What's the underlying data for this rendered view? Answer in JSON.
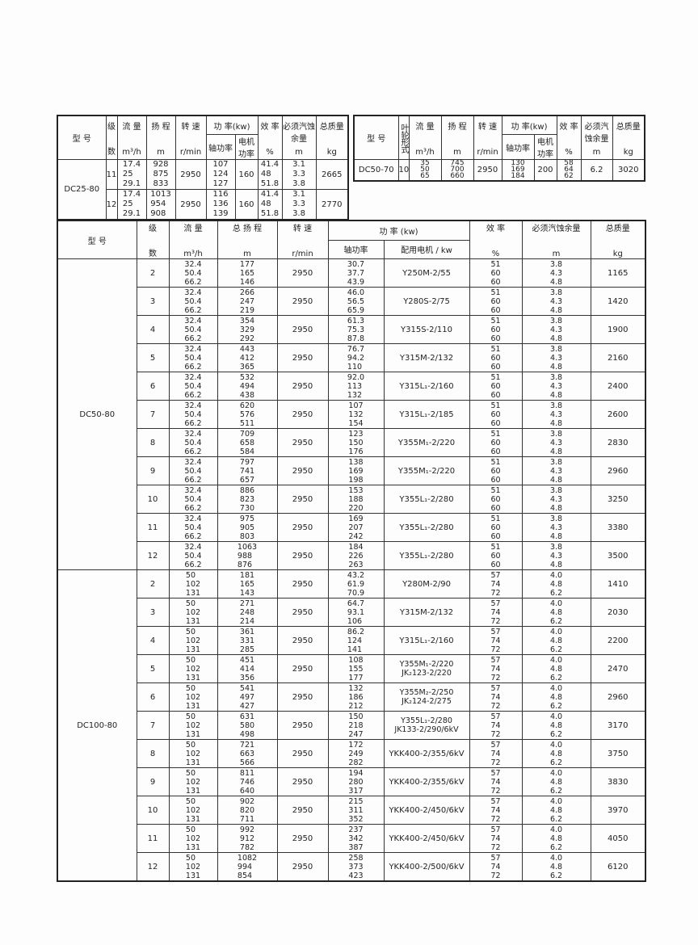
{
  "t1": {
    "header": [
      {
        "label": "型  号"
      },
      {
        "label": "级",
        "unit": "数"
      },
      {
        "label": "流 量",
        "unit": "m³/h"
      },
      {
        "label": "扬 程",
        "unit": "m"
      },
      {
        "label": "转 速",
        "unit": "r/min"
      },
      {
        "group": "功 率(kw)",
        "sub": [
          "轴功率",
          "电机功率"
        ]
      },
      {
        "label": "效 率",
        "unit": "%"
      },
      {
        "label": "必须汽蚀余量",
        "unit": "m"
      },
      {
        "label": "总质量",
        "unit": "kg"
      }
    ],
    "groups": [
      {
        "model": "DC25-80",
        "rows": [
          {
            "stages": "11",
            "flow": [
              "17.4",
              "25",
              "29.1"
            ],
            "head": [
              "928",
              "875",
              "833"
            ],
            "speed": "2950",
            "shaft": [
              "107",
              "124",
              "127"
            ],
            "motor": "160",
            "eff": [
              "41.4",
              "48",
              "51.8"
            ],
            "npsh": [
              "3.1",
              "3.3",
              "3.8"
            ],
            "weight": "2665"
          },
          {
            "stages": "12",
            "flow": [
              "17.4",
              "25",
              "29.1"
            ],
            "head": [
              "1013",
              "954",
              "908"
            ],
            "speed": "2950",
            "shaft": [
              "116",
              "136",
              "139"
            ],
            "motor": "160",
            "eff": [
              "41.4",
              "48",
              "51.8"
            ],
            "npsh": [
              "3.1",
              "3.3",
              "3.8"
            ],
            "weight": "2770"
          }
        ]
      }
    ]
  },
  "t2": {
    "header": [
      {
        "label": "型  号"
      },
      {
        "label": "叶轮形式",
        "vertical": true
      },
      {
        "label": "流 量",
        "unit": "m³/h"
      },
      {
        "label": "扬 程",
        "unit": "m"
      },
      {
        "label": "转 速",
        "unit": "r/min"
      },
      {
        "group": "功 率(kw)",
        "sub": [
          "轴功率",
          "电机功率"
        ]
      },
      {
        "label": "效 率",
        "unit": "%"
      },
      {
        "label": "必须汽蚀余量",
        "unit": "m"
      },
      {
        "label": "总质量",
        "unit": "kg"
      }
    ],
    "groups": [
      {
        "model": "DC50-70",
        "rows": [
          {
            "stages": "10",
            "flow": [
              "35",
              "50",
              "65"
            ],
            "head": [
              "745",
              "700",
              "660"
            ],
            "speed": "2950",
            "shaft": [
              "130",
              "169",
              "184"
            ],
            "motor": "200",
            "eff": [
              "58",
              "64",
              "62"
            ],
            "npsh": "6.2",
            "weight": "3020"
          }
        ]
      }
    ]
  },
  "t3": {
    "header": [
      {
        "label": "型  号"
      },
      {
        "label": "级",
        "unit": "数"
      },
      {
        "label": "流  量",
        "unit": "m³/h"
      },
      {
        "label": "总 扬 程",
        "unit": "m"
      },
      {
        "label": "转  速",
        "unit": "r/min"
      },
      {
        "group": "功 率 (kw)",
        "sub": [
          "轴功率",
          "配用电机 / kw"
        ]
      },
      {
        "label": "效    率",
        "unit": "%"
      },
      {
        "label": "必须汽蚀余量",
        "unit": "m"
      },
      {
        "label": "总质量",
        "unit": "kg"
      }
    ],
    "groups": [
      {
        "model": "DC50-80",
        "rows": [
          {
            "stages": "2",
            "flow": [
              "32.4",
              "50.4",
              "66.2"
            ],
            "head": [
              "177",
              "165",
              "146"
            ],
            "speed": "2950",
            "shaft": [
              "30.7",
              "37.7",
              "43.9"
            ],
            "motor": "Y250M-2/55",
            "eff": [
              "51",
              "60",
              "60"
            ],
            "npsh": [
              "3.8",
              "4.3",
              "4.8"
            ],
            "weight": "1165"
          },
          {
            "stages": "3",
            "flow": [
              "32.4",
              "50.4",
              "66.2"
            ],
            "head": [
              "266",
              "247",
              "219"
            ],
            "speed": "2950",
            "shaft": [
              "46.0",
              "56.5",
              "65.9"
            ],
            "motor": "Y280S-2/75",
            "eff": [
              "51",
              "60",
              "60"
            ],
            "npsh": [
              "3.8",
              "4.3",
              "4.8"
            ],
            "weight": "1420"
          },
          {
            "stages": "4",
            "flow": [
              "32.4",
              "50.4",
              "66.2"
            ],
            "head": [
              "354",
              "329",
              "292"
            ],
            "speed": "2950",
            "shaft": [
              "61.3",
              "75.3",
              "87.8"
            ],
            "motor": "Y315S-2/110",
            "eff": [
              "51",
              "60",
              "60"
            ],
            "npsh": [
              "3.8",
              "4.3",
              "4.8"
            ],
            "weight": "1900"
          },
          {
            "stages": "5",
            "flow": [
              "32.4",
              "50.4",
              "66.2"
            ],
            "head": [
              "443",
              "412",
              "365"
            ],
            "speed": "2950",
            "shaft": [
              "76.7",
              "94.2",
              "110"
            ],
            "motor": "Y315M-2/132",
            "eff": [
              "51",
              "60",
              "60"
            ],
            "npsh": [
              "3.8",
              "4.3",
              "4.8"
            ],
            "weight": "2160"
          },
          {
            "stages": "6",
            "flow": [
              "32.4",
              "50.4",
              "66.2"
            ],
            "head": [
              "532",
              "494",
              "438"
            ],
            "speed": "2950",
            "shaft": [
              "92.0",
              "113",
              "132"
            ],
            "motor": "Y315L₁-2/160",
            "eff": [
              "51",
              "60",
              "60"
            ],
            "npsh": [
              "3.8",
              "4.3",
              "4.8"
            ],
            "weight": "2400"
          },
          {
            "stages": "7",
            "flow": [
              "32.4",
              "50.4",
              "66.2"
            ],
            "head": [
              "620",
              "576",
              "511"
            ],
            "speed": "2950",
            "shaft": [
              "107",
              "132",
              "154"
            ],
            "motor": "Y315L₁-2/185",
            "eff": [
              "51",
              "60",
              "60"
            ],
            "npsh": [
              "3.8",
              "4.3",
              "4.8"
            ],
            "weight": "2600"
          },
          {
            "stages": "8",
            "flow": [
              "32.4",
              "50.4",
              "66.2"
            ],
            "head": [
              "709",
              "658",
              "584"
            ],
            "speed": "2950",
            "shaft": [
              "123",
              "150",
              "176"
            ],
            "motor": "Y355M₁-2/220",
            "eff": [
              "51",
              "60",
              "60"
            ],
            "npsh": [
              "3.8",
              "4.3",
              "4.8"
            ],
            "weight": "2830"
          },
          {
            "stages": "9",
            "flow": [
              "32.4",
              "50.4",
              "66.2"
            ],
            "head": [
              "797",
              "741",
              "657"
            ],
            "speed": "2950",
            "shaft": [
              "138",
              "169",
              "198"
            ],
            "motor": "Y355M₁-2/220",
            "eff": [
              "51",
              "60",
              "60"
            ],
            "npsh": [
              "3.8",
              "4.3",
              "4.8"
            ],
            "weight": "2960"
          },
          {
            "stages": "10",
            "flow": [
              "32.4",
              "50.4",
              "66.2"
            ],
            "head": [
              "886",
              "823",
              "730"
            ],
            "speed": "2950",
            "shaft": [
              "153",
              "188",
              "220"
            ],
            "motor": "Y355L₁-2/280",
            "eff": [
              "51",
              "60",
              "60"
            ],
            "npsh": [
              "3.8",
              "4.3",
              "4.8"
            ],
            "weight": "3250"
          },
          {
            "stages": "11",
            "flow": [
              "32.4",
              "50.4",
              "66.2"
            ],
            "head": [
              "975",
              "905",
              "803"
            ],
            "speed": "2950",
            "shaft": [
              "169",
              "207",
              "242"
            ],
            "motor": "Y355L₁-2/280",
            "eff": [
              "51",
              "60",
              "60"
            ],
            "npsh": [
              "3.8",
              "4.3",
              "4.8"
            ],
            "weight": "3380"
          },
          {
            "stages": "12",
            "flow": [
              "32.4",
              "50.4",
              "66.2"
            ],
            "head": [
              "1063",
              "988",
              "876"
            ],
            "speed": "2950",
            "shaft": [
              "184",
              "226",
              "263"
            ],
            "motor": "Y355L₁-2/280",
            "eff": [
              "51",
              "60",
              "60"
            ],
            "npsh": [
              "3.8",
              "4.3",
              "4.8"
            ],
            "weight": "3500"
          }
        ]
      },
      {
        "model": "DC100-80",
        "rows": [
          {
            "stages": "2",
            "flow": [
              "50",
              "102",
              "131"
            ],
            "head": [
              "181",
              "165",
              "143"
            ],
            "speed": "2950",
            "shaft": [
              "43.2",
              "61.9",
              "70.9"
            ],
            "motor": "Y280M-2/90",
            "eff": [
              "57",
              "74",
              "72"
            ],
            "npsh": [
              "4.0",
              "4.8",
              "6.2"
            ],
            "weight": "1410"
          },
          {
            "stages": "3",
            "flow": [
              "50",
              "102",
              "131"
            ],
            "head": [
              "271",
              "248",
              "214"
            ],
            "speed": "2950",
            "shaft": [
              "64.7",
              "93.1",
              "106"
            ],
            "motor": "Y315M-2/132",
            "eff": [
              "57",
              "74",
              "72"
            ],
            "npsh": [
              "4.0",
              "4.8",
              "6.2"
            ],
            "weight": "2030"
          },
          {
            "stages": "4",
            "flow": [
              "50",
              "102",
              "131"
            ],
            "head": [
              "361",
              "331",
              "285"
            ],
            "speed": "2950",
            "shaft": [
              "86.2",
              "124",
              "141"
            ],
            "motor": "Y315L₁-2/160",
            "eff": [
              "57",
              "74",
              "72"
            ],
            "npsh": [
              "4.0",
              "4.8",
              "6.2"
            ],
            "weight": "2200"
          },
          {
            "stages": "5",
            "flow": [
              "50",
              "102",
              "131"
            ],
            "head": [
              "451",
              "414",
              "356"
            ],
            "speed": "2950",
            "shaft": [
              "108",
              "155",
              "177"
            ],
            "motor": [
              "Y355M₁-2/220",
              "JK₂123-2/220"
            ],
            "eff": [
              "57",
              "74",
              "72"
            ],
            "npsh": [
              "4.0",
              "4.8",
              "6.2"
            ],
            "weight": "2470"
          },
          {
            "stages": "6",
            "flow": [
              "50",
              "102",
              "131"
            ],
            "head": [
              "541",
              "497",
              "427"
            ],
            "speed": "2950",
            "shaft": [
              "132",
              "186",
              "212"
            ],
            "motor": [
              "Y355M₂-2/250",
              "JK₂124-2/275"
            ],
            "eff": [
              "57",
              "74",
              "72"
            ],
            "npsh": [
              "4.0",
              "4.8",
              "6.2"
            ],
            "weight": "2960"
          },
          {
            "stages": "7",
            "flow": [
              "50",
              "102",
              "131"
            ],
            "head": [
              "631",
              "580",
              "498"
            ],
            "speed": "2950",
            "shaft": [
              "150",
              "218",
              "247"
            ],
            "motor": [
              "Y355L₁-2/280",
              "JK133-2/290/6kV"
            ],
            "eff": [
              "57",
              "74",
              "72"
            ],
            "npsh": [
              "4.0",
              "4.8",
              "6.2"
            ],
            "weight": "3170"
          },
          {
            "stages": "8",
            "flow": [
              "50",
              "102",
              "131"
            ],
            "head": [
              "721",
              "663",
              "566"
            ],
            "speed": "2950",
            "shaft": [
              "172",
              "249",
              "282"
            ],
            "motor": "YKK400-2/355/6kV",
            "eff": [
              "57",
              "74",
              "72"
            ],
            "npsh": [
              "4.0",
              "4.8",
              "6.2"
            ],
            "weight": "3750"
          },
          {
            "stages": "9",
            "flow": [
              "50",
              "102",
              "131"
            ],
            "head": [
              "811",
              "746",
              "640"
            ],
            "speed": "2950",
            "shaft": [
              "194",
              "280",
              "317"
            ],
            "motor": "YKK400-2/355/6kV",
            "eff": [
              "57",
              "74",
              "72"
            ],
            "npsh": [
              "4.0",
              "4.8",
              "6.2"
            ],
            "weight": "3830"
          },
          {
            "stages": "10",
            "flow": [
              "50",
              "102",
              "131"
            ],
            "head": [
              "902",
              "820",
              "711"
            ],
            "speed": "2950",
            "shaft": [
              "215",
              "311",
              "352"
            ],
            "motor": "YKK400-2/450/6kV",
            "eff": [
              "57",
              "74",
              "72"
            ],
            "npsh": [
              "4.0",
              "4.8",
              "6.2"
            ],
            "weight": "3970"
          },
          {
            "stages": "11",
            "flow": [
              "50",
              "102",
              "131"
            ],
            "head": [
              "992",
              "912",
              "782"
            ],
            "speed": "2950",
            "shaft": [
              "237",
              "342",
              "387"
            ],
            "motor": "YKK400-2/450/6kV",
            "eff": [
              "57",
              "74",
              "72"
            ],
            "npsh": [
              "4.0",
              "4.8",
              "6.2"
            ],
            "weight": "4050"
          },
          {
            "stages": "12",
            "flow": [
              "50",
              "102",
              "131"
            ],
            "head": [
              "1082",
              "994",
              "854"
            ],
            "speed": "2950",
            "shaft": [
              "258",
              "373",
              "423"
            ],
            "motor": "YKK400-2/500/6kV",
            "eff": [
              "57",
              "74",
              "72"
            ],
            "npsh": [
              "4.0",
              "4.8",
              "6.2"
            ],
            "weight": "6120"
          }
        ]
      }
    ]
  }
}
